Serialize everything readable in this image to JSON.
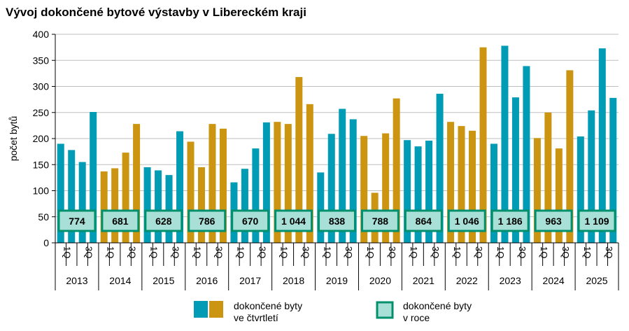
{
  "chart_data": {
    "type": "bar",
    "title": "Vývoj dokončené bytové výstavby v Libereckém kraji",
    "ylabel": "počet bytů",
    "ylim": [
      0,
      400
    ],
    "yticks": [
      0,
      50,
      100,
      150,
      200,
      250,
      300,
      350,
      400
    ],
    "grid": true,
    "legend_position": "bottom",
    "quarter_labels": [
      "1Q",
      "",
      "3Q",
      ""
    ],
    "years": [
      "2013",
      "2014",
      "2015",
      "2016",
      "2017",
      "2018",
      "2019",
      "2020",
      "2021",
      "2022",
      "2023",
      "2024",
      "2025"
    ],
    "series": [
      {
        "name": "dokončené  byty ve čtvrtletí",
        "values": [
          [
            190,
            178,
            155,
            251
          ],
          [
            137,
            143,
            173,
            228
          ],
          [
            145,
            139,
            130,
            214
          ],
          [
            194,
            145,
            228,
            219
          ],
          [
            116,
            142,
            181,
            231
          ],
          [
            232,
            228,
            318,
            266
          ],
          [
            135,
            209,
            257,
            237
          ],
          [
            205,
            96,
            210,
            277
          ],
          [
            197,
            185,
            196,
            286
          ],
          [
            232,
            224,
            215,
            375
          ],
          [
            190,
            378,
            279,
            339
          ],
          [
            201,
            250,
            181,
            331
          ],
          [
            204,
            254,
            373,
            278
          ]
        ]
      },
      {
        "name": "dokončené byty v roce",
        "values": [
          "774",
          "681",
          "628",
          "786",
          "670",
          "1 044",
          "838",
          "788",
          "864",
          "1 046",
          "1 186",
          "963",
          "1 109"
        ]
      }
    ],
    "colors": {
      "odd_years": "#009BB4",
      "even_years": "#CC9511",
      "annual_fill": "#A8DFD6",
      "annual_border": "#00906E"
    }
  },
  "legend": {
    "quarterly_line1": "dokončené  byty",
    "quarterly_line2": "ve čtvrtletí",
    "annual_line1": "dokončené byty",
    "annual_line2": "v roce"
  }
}
